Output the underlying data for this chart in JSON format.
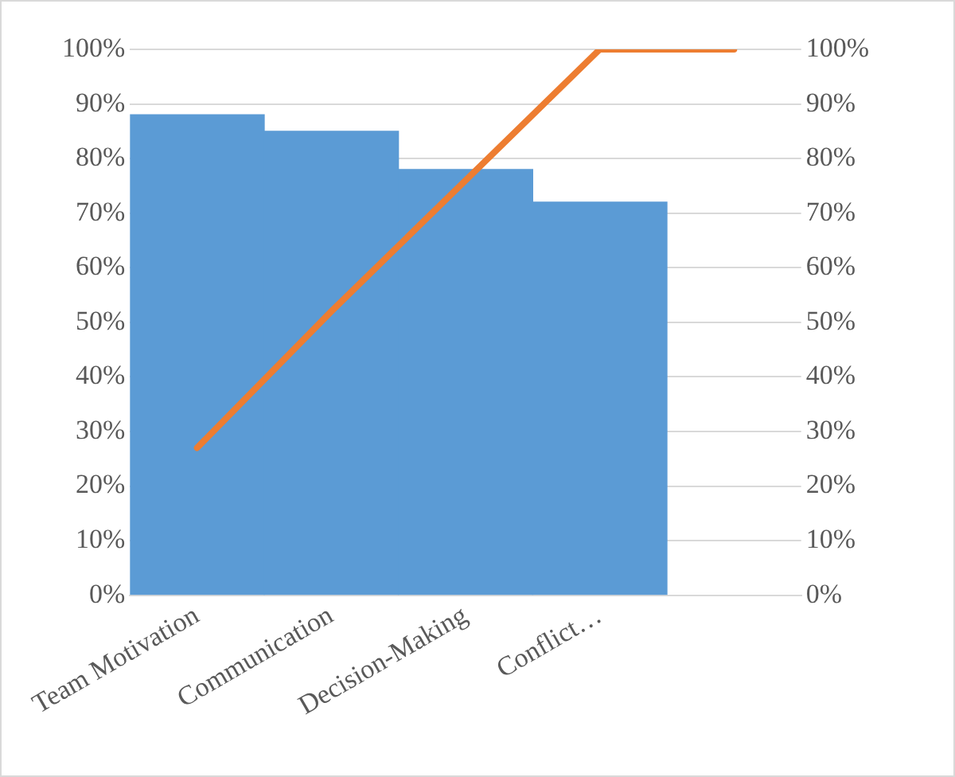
{
  "chart_data": {
    "type": "bar",
    "categories": [
      "Team Motivation",
      "Communication",
      "Decision-Making",
      "Conflict…",
      null
    ],
    "series": [
      {
        "color": "#5b9bd5",
        "values": [
          88,
          85,
          78,
          72,
          null
        ]
      },
      {
        "type": "line",
        "color": "#ed7d31",
        "axis": "y2",
        "values": [
          27,
          52,
          76,
          100,
          100
        ]
      }
    ],
    "ylim": [
      0,
      100
    ],
    "yticks": [
      {
        "value": 0,
        "label": "0%"
      },
      {
        "value": 10,
        "label": "10%"
      },
      {
        "value": 20,
        "label": "20%"
      },
      {
        "value": 30,
        "label": "30%"
      },
      {
        "value": 40,
        "label": "40%"
      },
      {
        "value": 50,
        "label": "50%"
      },
      {
        "value": 60,
        "label": "60%"
      },
      {
        "value": 70,
        "label": "70%"
      },
      {
        "value": 80,
        "label": "80%"
      },
      {
        "value": 90,
        "label": "90%"
      },
      {
        "value": 100,
        "label": "100%"
      }
    ],
    "y2lim": [
      0,
      100
    ],
    "y2ticks": [
      {
        "value": 0,
        "label": "0%"
      },
      {
        "value": 10,
        "label": "10%"
      },
      {
        "value": 20,
        "label": "20%"
      },
      {
        "value": 30,
        "label": "30%"
      },
      {
        "value": 40,
        "label": "40%"
      },
      {
        "value": 50,
        "label": "50%"
      },
      {
        "value": 60,
        "label": "60%"
      },
      {
        "value": 70,
        "label": "70%"
      },
      {
        "value": 80,
        "label": "80%"
      },
      {
        "value": 90,
        "label": "90%"
      },
      {
        "value": 100,
        "label": "100%"
      }
    ],
    "grid": "y",
    "legend": false,
    "marker": "none"
  }
}
